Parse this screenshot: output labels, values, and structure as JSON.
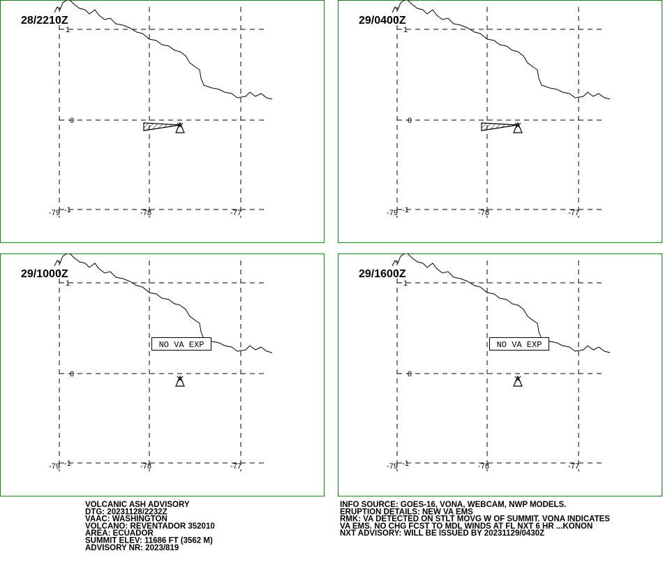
{
  "panels": [
    {
      "time": "28/2210Z"
    },
    {
      "time": "29/0400Z"
    },
    {
      "time": "29/1000Z",
      "note": "NO VA EXP"
    },
    {
      "time": "29/1600Z",
      "note": "NO VA EXP"
    }
  ],
  "grid": {
    "lat_labels": [
      "1",
      "0",
      "-1"
    ],
    "lon_labels": [
      "-79",
      "-78",
      "-77"
    ]
  },
  "advisory_left": [
    "VOLCANIC ASH ADVISORY",
    "DTG: 20231128/2232Z",
    "VAAC: WASHINGTON",
    "VOLCANO: REVENTADOR 352010",
    "AREA: ECUADOR",
    "SUMMIT ELEV: 11686 FT (3562 M)",
    "ADVISORY NR: 2023/819"
  ],
  "advisory_right": [
    "INFO SOURCE: GOES-16, VONA, WEBCAM, NWP MODELS.",
    "ERUPTION DETAILS: NEW VA EMS",
    "RMK: VA DETECTED ON STLT MOVG W OF SUMMIT. VONA INDICATES",
    "VA EMS. NO CHG FCST TO MDL WINDS AT FL NXT 6 HR ...KONON",
    "NXT ADVISORY: WILL BE ISSUED BY 20231129/0430Z"
  ]
}
